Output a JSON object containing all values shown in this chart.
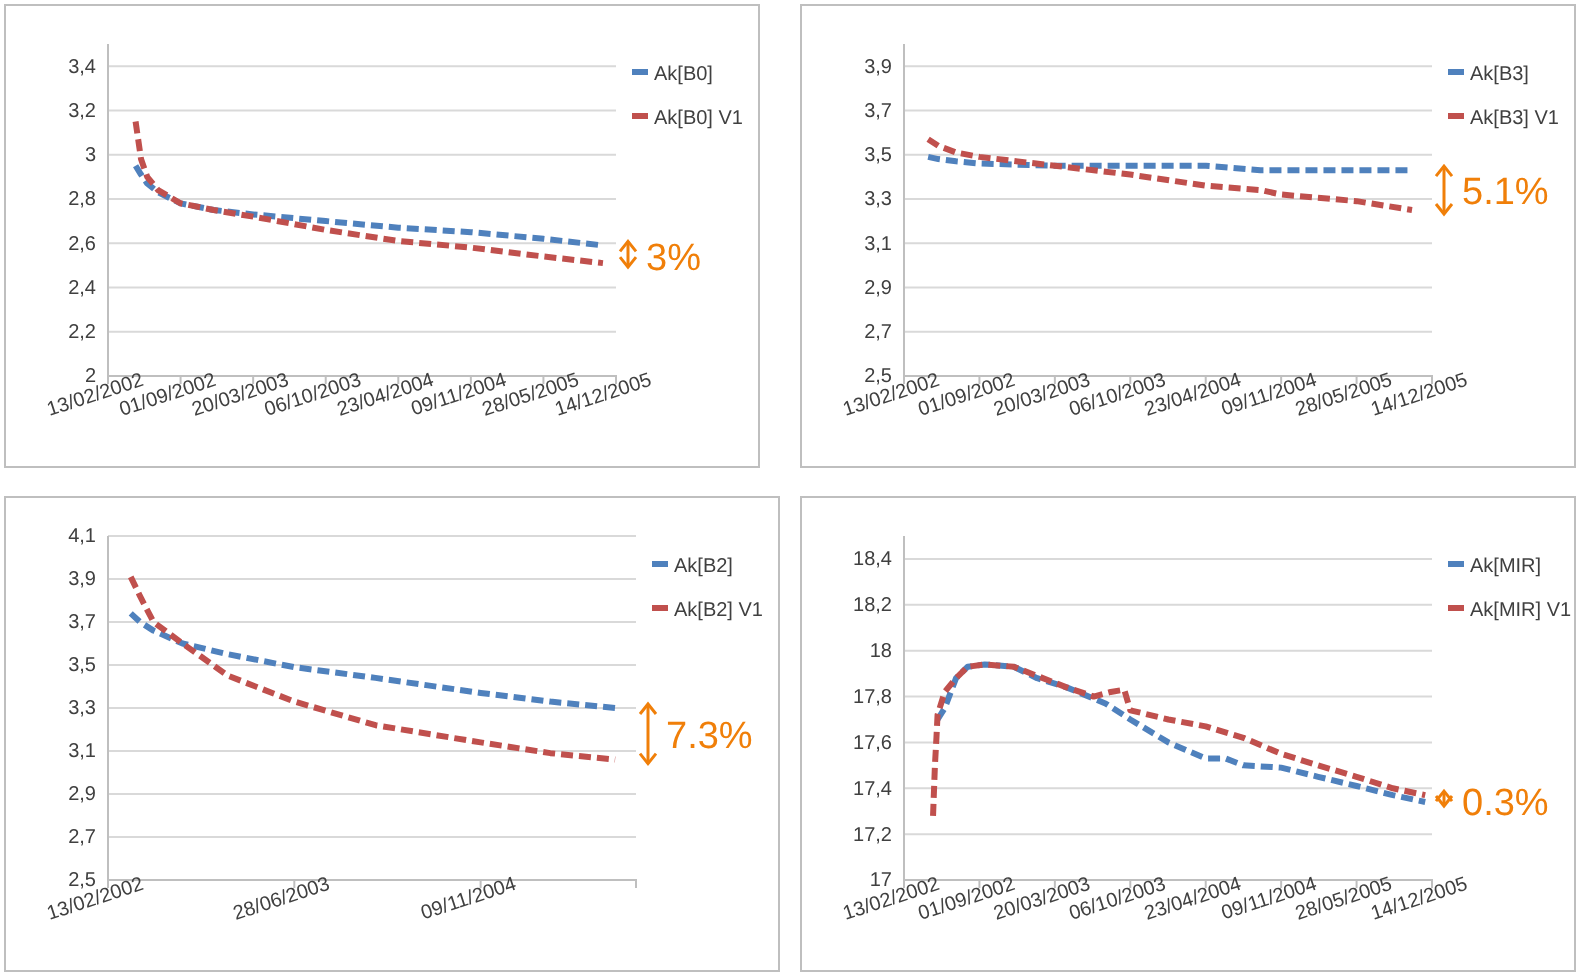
{
  "chart_data": [
    {
      "type": "line",
      "x": [
        "2002-04-30",
        "2002-05-15",
        "2002-06-01",
        "2002-07-01",
        "2002-09-01",
        "2002-12-01",
        "2003-03-20",
        "2003-10-06",
        "2004-04-23",
        "2004-11-09",
        "2005-05-28",
        "2005-11-08"
      ],
      "series": [
        {
          "name": "Ak[B0]",
          "color": "#4f81bd",
          "values": [
            2.95,
            2.91,
            2.87,
            2.83,
            2.78,
            2.75,
            2.73,
            2.7,
            2.67,
            2.65,
            2.62,
            2.59
          ]
        },
        {
          "name": "Ak[B0] V1",
          "color": "#c0504d",
          "values": [
            3.15,
            2.98,
            2.9,
            2.84,
            2.78,
            2.75,
            2.72,
            2.66,
            2.61,
            2.58,
            2.54,
            2.51
          ]
        }
      ],
      "xlim": [
        "2002-02-13",
        "2005-12-14"
      ],
      "xticks": [
        {
          "value": "2002-02-13",
          "label": "13/02/2002"
        },
        {
          "value": "2002-09-01",
          "label": "01/09/2002"
        },
        {
          "value": "2003-03-20",
          "label": "20/03/2003"
        },
        {
          "value": "2003-10-06",
          "label": "06/10/2003"
        },
        {
          "value": "2004-04-23",
          "label": "23/04/2004"
        },
        {
          "value": "2004-11-09",
          "label": "09/11/2004"
        },
        {
          "value": "2005-05-28",
          "label": "28/05/2005"
        },
        {
          "value": "2005-12-14",
          "label": "14/12/2005"
        }
      ],
      "ylim": [
        2,
        3.5
      ],
      "yticks": [
        {
          "value": 2,
          "label": "2"
        },
        {
          "value": 2.2,
          "label": "2,2"
        },
        {
          "value": 2.4,
          "label": "2,4"
        },
        {
          "value": 2.6,
          "label": "2,6"
        },
        {
          "value": 2.8,
          "label": "2,8"
        },
        {
          "value": 3,
          "label": "3"
        },
        {
          "value": 3.2,
          "label": "3,2"
        },
        {
          "value": 3.4,
          "label": "3,4"
        }
      ],
      "grid": "y",
      "legend": "right",
      "line_style": "dashed",
      "annotations": [
        "3%"
      ]
    },
    {
      "type": "line",
      "x": [
        "2002-04-18",
        "2002-05-15",
        "2002-07-01",
        "2002-09-01",
        "2003-03-20",
        "2003-10-06",
        "2004-04-23",
        "2004-09-15",
        "2004-11-09",
        "2005-05-28",
        "2005-10-22"
      ],
      "series": [
        {
          "name": "Ak[B3]",
          "color": "#4f81bd",
          "values": [
            3.49,
            3.48,
            3.47,
            3.46,
            3.45,
            3.45,
            3.45,
            3.43,
            3.43,
            3.43,
            3.43
          ]
        },
        {
          "name": "Ak[B3] V1",
          "color": "#c0504d",
          "values": [
            3.57,
            3.54,
            3.51,
            3.49,
            3.45,
            3.41,
            3.36,
            3.34,
            3.32,
            3.29,
            3.25
          ]
        }
      ],
      "xlim": [
        "2002-02-13",
        "2005-12-14"
      ],
      "xticks": [
        {
          "value": "2002-02-13",
          "label": "13/02/2002"
        },
        {
          "value": "2002-09-01",
          "label": "01/09/2002"
        },
        {
          "value": "2003-03-20",
          "label": "20/03/2003"
        },
        {
          "value": "2003-10-06",
          "label": "06/10/2003"
        },
        {
          "value": "2004-04-23",
          "label": "23/04/2004"
        },
        {
          "value": "2004-11-09",
          "label": "09/11/2004"
        },
        {
          "value": "2005-05-28",
          "label": "28/05/2005"
        },
        {
          "value": "2005-12-14",
          "label": "14/12/2005"
        }
      ],
      "ylim": [
        2.5,
        4
      ],
      "yticks": [
        {
          "value": 2.5,
          "label": "2,5"
        },
        {
          "value": 2.7,
          "label": "2,7"
        },
        {
          "value": 2.9,
          "label": "2,9"
        },
        {
          "value": 3.1,
          "label": "3,1"
        },
        {
          "value": 3.3,
          "label": "3,3"
        },
        {
          "value": 3.5,
          "label": "3,5"
        },
        {
          "value": 3.7,
          "label": "3,7"
        },
        {
          "value": 3.9,
          "label": "3,9"
        }
      ],
      "grid": "y",
      "legend": "right",
      "line_style": "dashed",
      "annotations": [
        "5.1%"
      ]
    },
    {
      "type": "line",
      "x": [
        "2002-04-15",
        "2002-05-10",
        "2002-06-15",
        "2002-09-01",
        "2003-01-01",
        "2003-06-28",
        "2004-02-01",
        "2004-11-09",
        "2005-05-15",
        "2005-11-05"
      ],
      "series": [
        {
          "name": "Ak[B2]",
          "color": "#4f81bd",
          "values": [
            3.74,
            3.7,
            3.66,
            3.6,
            3.55,
            3.49,
            3.44,
            3.37,
            3.33,
            3.3
          ]
        },
        {
          "name": "Ak[B2] V1",
          "color": "#c0504d",
          "values": [
            3.91,
            3.82,
            3.7,
            3.6,
            3.45,
            3.33,
            3.22,
            3.14,
            3.09,
            3.06
          ]
        }
      ],
      "xlim": [
        "2002-02-13",
        "2005-12-31"
      ],
      "xticks": [
        {
          "value": "2002-02-13",
          "label": "13/02/2002"
        },
        {
          "value": "2003-06-28",
          "label": "28/06/2003"
        },
        {
          "value": "2004-11-09",
          "label": "09/11/2004"
        }
      ],
      "ylim": [
        2.5,
        4.1
      ],
      "yticks": [
        {
          "value": 2.5,
          "label": "2,5"
        },
        {
          "value": 2.7,
          "label": "2,7"
        },
        {
          "value": 2.9,
          "label": "2,9"
        },
        {
          "value": 3.1,
          "label": "3,1"
        },
        {
          "value": 3.3,
          "label": "3,3"
        },
        {
          "value": 3.5,
          "label": "3,5"
        },
        {
          "value": 3.7,
          "label": "3,7"
        },
        {
          "value": 3.9,
          "label": "3,9"
        },
        {
          "value": 4.1,
          "label": "4,1"
        }
      ],
      "grid": "y",
      "legend": "right",
      "line_style": "dashed",
      "annotations": [
        "7.3%"
      ]
    },
    {
      "type": "line",
      "series": [
        {
          "name": "Ak[MIR]",
          "color": "#4f81bd",
          "x": [
            "2002-05-13",
            "2002-06-01",
            "2002-07-01",
            "2002-08-01",
            "2002-09-15",
            "2002-12-01",
            "2003-02-01",
            "2003-04-20",
            "2003-08-01",
            "2003-10-06",
            "2004-01-15",
            "2004-04-23",
            "2004-06-15",
            "2004-08-01",
            "2004-11-09",
            "2005-02-15",
            "2005-05-28",
            "2005-09-01",
            "2005-11-26"
          ],
          "values": [
            17.7,
            17.75,
            17.88,
            17.93,
            17.94,
            17.93,
            17.88,
            17.84,
            17.77,
            17.7,
            17.6,
            17.53,
            17.53,
            17.5,
            17.49,
            17.45,
            17.41,
            17.37,
            17.34
          ]
        },
        {
          "name": "Ak[MIR] V1",
          "color": "#c0504d",
          "x": [
            "2002-05-01",
            "2002-05-06",
            "2002-05-10",
            "2002-05-13",
            "2002-06-01",
            "2002-07-01",
            "2002-08-01",
            "2002-09-15",
            "2002-12-01",
            "2003-02-01",
            "2003-04-20",
            "2003-07-01",
            "2003-08-15",
            "2003-09-20",
            "2003-10-06",
            "2004-01-15",
            "2004-04-23",
            "2004-08-01",
            "2004-11-09",
            "2005-02-15",
            "2005-05-28",
            "2005-09-01",
            "2005-11-26"
          ],
          "values": [
            17.28,
            17.5,
            17.62,
            17.72,
            17.82,
            17.88,
            17.93,
            17.94,
            17.93,
            17.89,
            17.84,
            17.8,
            17.82,
            17.83,
            17.74,
            17.7,
            17.67,
            17.62,
            17.55,
            17.5,
            17.45,
            17.4,
            17.37
          ]
        }
      ],
      "xlim": [
        "2002-02-13",
        "2005-12-14"
      ],
      "xticks": [
        {
          "value": "2002-02-13",
          "label": "13/02/2002"
        },
        {
          "value": "2002-09-01",
          "label": "01/09/2002"
        },
        {
          "value": "2003-03-20",
          "label": "20/03/2003"
        },
        {
          "value": "2003-10-06",
          "label": "06/10/2003"
        },
        {
          "value": "2004-04-23",
          "label": "23/04/2004"
        },
        {
          "value": "2004-11-09",
          "label": "09/11/2004"
        },
        {
          "value": "2005-05-28",
          "label": "28/05/2005"
        },
        {
          "value": "2005-12-14",
          "label": "14/12/2005"
        }
      ],
      "ylim": [
        17,
        18.5
      ],
      "yticks": [
        {
          "value": 17,
          "label": "17"
        },
        {
          "value": 17.2,
          "label": "17,2"
        },
        {
          "value": 17.4,
          "label": "17,4"
        },
        {
          "value": 17.6,
          "label": "17,6"
        },
        {
          "value": 17.8,
          "label": "17,8"
        },
        {
          "value": 18,
          "label": "18"
        },
        {
          "value": 18.2,
          "label": "18,2"
        },
        {
          "value": 18.4,
          "label": "18,4"
        }
      ],
      "grid": "y",
      "legend": "right",
      "line_style": "dashed",
      "annotations": [
        "0.3%"
      ]
    }
  ]
}
